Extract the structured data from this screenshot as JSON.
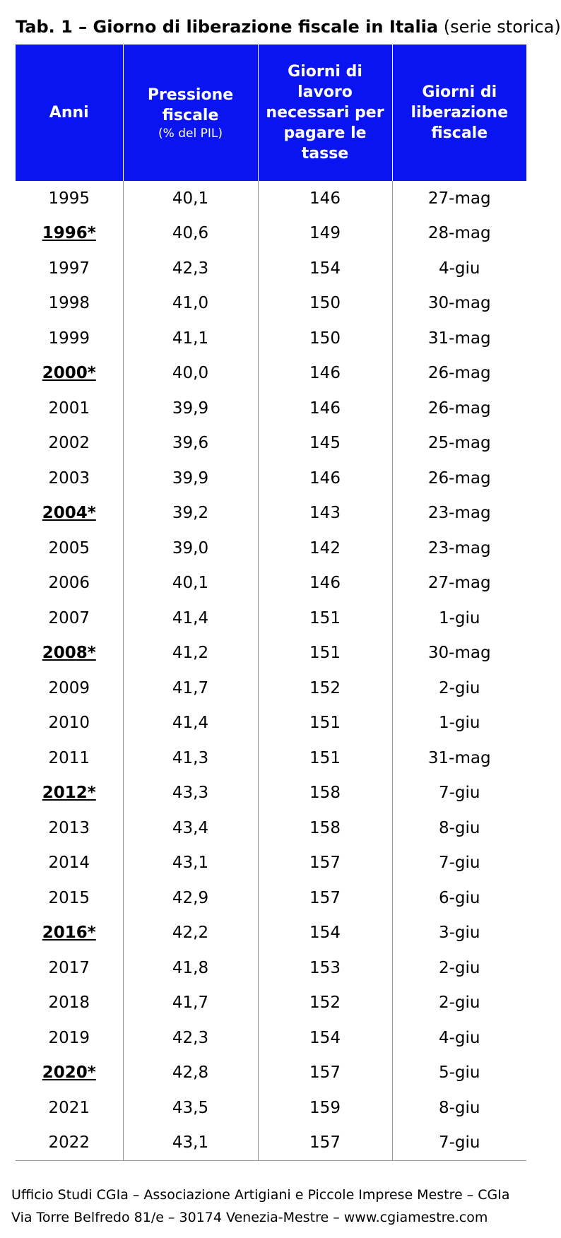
{
  "title": {
    "main": "Tab. 1 – Giorno di liberazione fiscale in Italia",
    "note": "(serie storica)"
  },
  "table": {
    "header": [
      {
        "label": "Anni"
      },
      {
        "label": "Pressione fiscale",
        "sub": "(% del PIL)"
      },
      {
        "label": "Giorni di lavoro necessari per pagare le tasse"
      },
      {
        "label": "Giorni di liberazione fiscale"
      }
    ],
    "rows": [
      [
        "1995",
        "40,1",
        "146",
        "27-mag"
      ],
      [
        "1996*",
        "40,6",
        "149",
        "28-mag"
      ],
      [
        "1997",
        "42,3",
        "154",
        "4-giu"
      ],
      [
        "1998",
        "41,0",
        "150",
        "30-mag"
      ],
      [
        "1999",
        "41,1",
        "150",
        "31-mag"
      ],
      [
        "2000*",
        "40,0",
        "146",
        "26-mag"
      ],
      [
        "2001",
        "39,9",
        "146",
        "26-mag"
      ],
      [
        "2002",
        "39,6",
        "145",
        "25-mag"
      ],
      [
        "2003",
        "39,9",
        "146",
        "26-mag"
      ],
      [
        "2004*",
        "39,2",
        "143",
        "23-mag"
      ],
      [
        "2005",
        "39,0",
        "142",
        "23-mag"
      ],
      [
        "2006",
        "40,1",
        "146",
        "27-mag"
      ],
      [
        "2007",
        "41,4",
        "151",
        "1-giu"
      ],
      [
        "2008*",
        "41,2",
        "151",
        "30-mag"
      ],
      [
        "2009",
        "41,7",
        "152",
        "2-giu"
      ],
      [
        "2010",
        "41,4",
        "151",
        "1-giu"
      ],
      [
        "2011",
        "41,3",
        "151",
        "31-mag"
      ],
      [
        "2012*",
        "43,3",
        "158",
        "7-giu"
      ],
      [
        "2013",
        "43,4",
        "158",
        "8-giu"
      ],
      [
        "2014",
        "43,1",
        "157",
        "7-giu"
      ],
      [
        "2015",
        "42,9",
        "157",
        "6-giu"
      ],
      [
        "2016*",
        "42,2",
        "154",
        "3-giu"
      ],
      [
        "2017",
        "41,8",
        "153",
        "2-giu"
      ],
      [
        "2018",
        "41,7",
        "152",
        "2-giu"
      ],
      [
        "2019",
        "42,3",
        "154",
        "4-giu"
      ],
      [
        "2020*",
        "42,8",
        "157",
        "5-giu"
      ],
      [
        "2021",
        "43,5",
        "159",
        "8-giu"
      ],
      [
        "2022",
        "43,1",
        "157",
        "7-giu"
      ]
    ]
  },
  "footer": [
    "Ufficio Studi CGIa – Associazione Artigiani e Piccole Imprese Mestre – CGIa",
    "Via Torre Belfredo 81/e – 30174 Venezia-Mestre – www.cgiamestre.com"
  ]
}
